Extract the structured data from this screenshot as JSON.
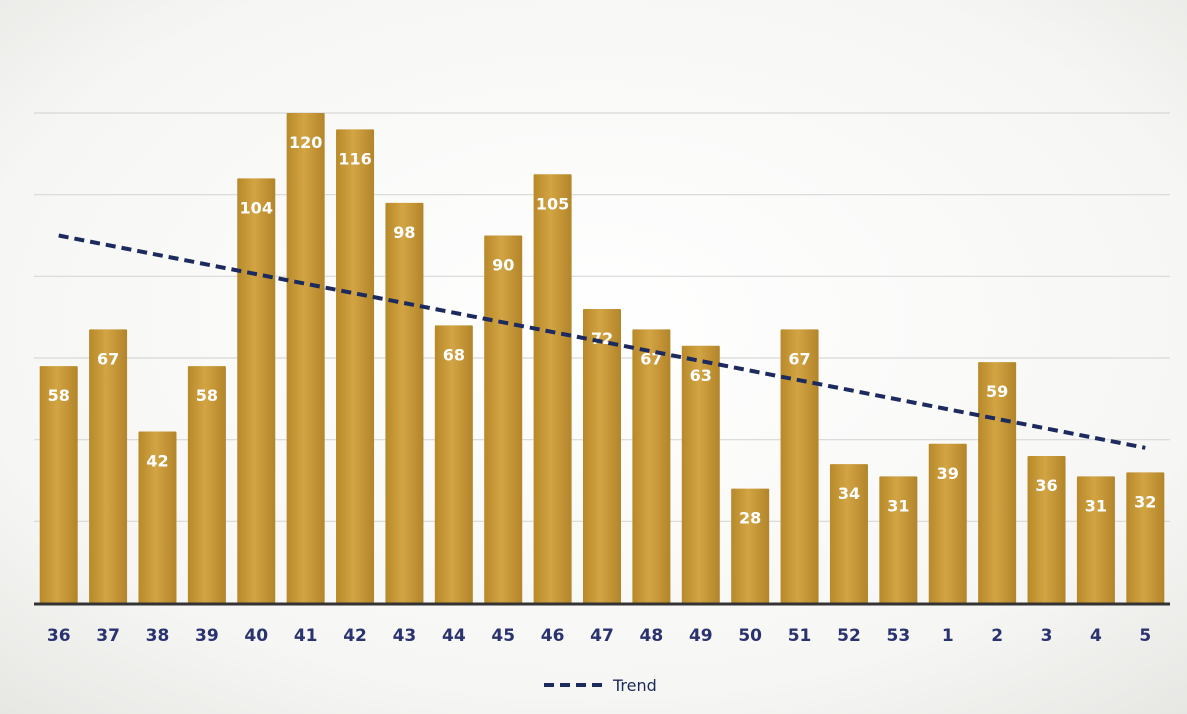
{
  "chart_data": {
    "type": "bar",
    "categories": [
      "36",
      "37",
      "38",
      "39",
      "40",
      "41",
      "42",
      "43",
      "44",
      "45",
      "46",
      "47",
      "48",
      "49",
      "50",
      "51",
      "52",
      "53",
      "1",
      "2",
      "3",
      "4",
      "5"
    ],
    "values": [
      58,
      67,
      42,
      58,
      104,
      120,
      116,
      98,
      68,
      90,
      105,
      72,
      67,
      63,
      28,
      67,
      34,
      31,
      39,
      59,
      36,
      31,
      32
    ],
    "ylim": [
      0,
      120
    ],
    "grid": true,
    "trend": {
      "name": "Trend",
      "start": 90,
      "end": 38
    },
    "legend": {
      "placement": "bottom",
      "entries": [
        "Trend"
      ]
    },
    "colors": {
      "bar": "#c4962f",
      "bar_highlight": "#d8ab45",
      "trend": "#1c2a5e",
      "grid": "#d8d8d8",
      "axis": "#333333",
      "tick": "#2a3370",
      "bar_label": "#ffffff"
    }
  }
}
